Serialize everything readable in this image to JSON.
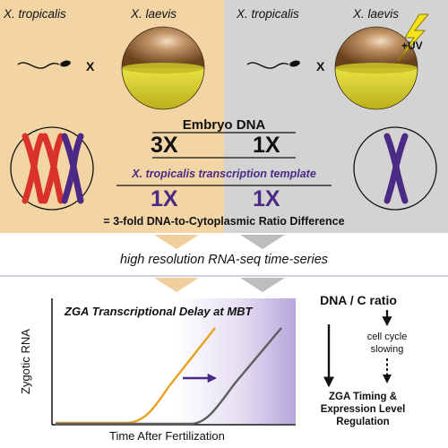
{
  "top_panel": {
    "left": {
      "species_1": "X. tropicalis",
      "species_2": "X. laevis",
      "cross_symbol": "X"
    },
    "right": {
      "species_1": "X. tropicalis",
      "species_2": "X. laevis",
      "cross_symbol": "X",
      "uv_label": "+UV"
    }
  },
  "center_table": {
    "header": "Embryo DNA",
    "dna_left": "3X",
    "dna_right": "1X",
    "template_label": "X. tropicalis transcription template",
    "template_left": "1X",
    "template_right": "1X",
    "ratio_note": "= 3-fold DNA-to-Cytoplasmic Ratio Difference"
  },
  "method_label": "high resolution RNA-seq time-series",
  "chart": {
    "title": "ZGA Transcriptional Delay at MBT",
    "y_label": "Zygotic RNA",
    "x_label": "Time After Fertilization"
  },
  "model": {
    "title": "DNA / C ratio",
    "middle": [
      "cell cycle",
      "slowing"
    ],
    "outcome": [
      "ZGA Timing &",
      "Expression Level",
      "Regulation"
    ]
  },
  "colors": {
    "left_bg": "#f3d4a4",
    "right_bg": "#d3d3d3",
    "purple": "#4b2a86",
    "red_chromosome": "#d9322a",
    "orange_curve": "#e8a21f",
    "gray_curve": "#5e5e5e",
    "yolk": "#d8cf2b",
    "egg_top": "#7a4f22"
  }
}
